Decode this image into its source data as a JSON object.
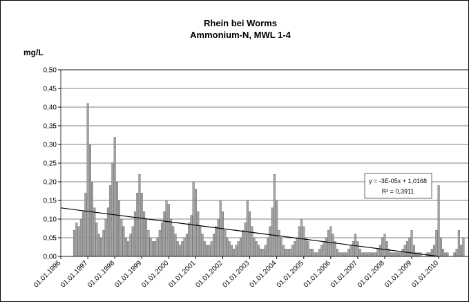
{
  "chart_data": {
    "type": "bar",
    "title": "Rhein bei Worms",
    "subtitle": "Ammonium-N, MWL 1-4",
    "y_label": "mg/L",
    "color": "#a6a6a6",
    "grid": true,
    "x": [
      "1996-07",
      "1996-08",
      "1996-09",
      "1996-10",
      "1996-11",
      "1996-12",
      "1997-01",
      "1997-02",
      "1997-03",
      "1997-04",
      "1997-05",
      "1997-06",
      "1997-07",
      "1997-08",
      "1997-09",
      "1997-10",
      "1997-11",
      "1997-12",
      "1998-01",
      "1998-02",
      "1998-03",
      "1998-04",
      "1998-05",
      "1998-06",
      "1998-07",
      "1998-08",
      "1998-09",
      "1998-10",
      "1998-11",
      "1998-12",
      "1999-01",
      "1999-02",
      "1999-03",
      "1999-04",
      "1999-05",
      "1999-06",
      "1999-07",
      "1999-08",
      "1999-09",
      "1999-10",
      "1999-11",
      "1999-12",
      "2000-01",
      "2000-02",
      "2000-03",
      "2000-04",
      "2000-05",
      "2000-06",
      "2000-07",
      "2000-08",
      "2000-09",
      "2000-10",
      "2000-11",
      "2000-12",
      "2001-01",
      "2001-02",
      "2001-03",
      "2001-04",
      "2001-05",
      "2001-06",
      "2001-07",
      "2001-08",
      "2001-09",
      "2001-10",
      "2001-11",
      "2001-12",
      "2002-01",
      "2002-02",
      "2002-03",
      "2002-04",
      "2002-05",
      "2002-06",
      "2002-07",
      "2002-08",
      "2002-09",
      "2002-10",
      "2002-11",
      "2002-12",
      "2003-01",
      "2003-02",
      "2003-03",
      "2003-04",
      "2003-05",
      "2003-06",
      "2003-07",
      "2003-08",
      "2003-09",
      "2003-10",
      "2003-11",
      "2003-12",
      "2004-01",
      "2004-02",
      "2004-03",
      "2004-04",
      "2004-05",
      "2004-06",
      "2004-07",
      "2004-08",
      "2004-09",
      "2004-10",
      "2004-11",
      "2004-12",
      "2005-01",
      "2005-02",
      "2005-03",
      "2005-04",
      "2005-05",
      "2005-06",
      "2005-07",
      "2005-08",
      "2005-09",
      "2005-10",
      "2005-11",
      "2005-12",
      "2006-01",
      "2006-02",
      "2006-03",
      "2006-04",
      "2006-05",
      "2006-06",
      "2006-07",
      "2006-08",
      "2006-09",
      "2006-10",
      "2006-11",
      "2006-12",
      "2007-01",
      "2007-02",
      "2007-03",
      "2007-04",
      "2007-05",
      "2007-06",
      "2007-07",
      "2007-08",
      "2007-09",
      "2007-10",
      "2007-11",
      "2007-12",
      "2008-01",
      "2008-02",
      "2008-03",
      "2008-04",
      "2008-05",
      "2008-06",
      "2008-07",
      "2008-08",
      "2008-09",
      "2008-10",
      "2008-11",
      "2008-12",
      "2009-01",
      "2009-02",
      "2009-03",
      "2009-04",
      "2009-05",
      "2009-06",
      "2009-07",
      "2009-08",
      "2009-09",
      "2009-10",
      "2009-11",
      "2009-12",
      "2010-01",
      "2010-02",
      "2010-03",
      "2010-04",
      "2010-05",
      "2010-06",
      "2010-07",
      "2010-08",
      "2010-09",
      "2010-10",
      "2010-11",
      "2010-12"
    ],
    "values": [
      0.07,
      0.09,
      0.08,
      0.1,
      0.12,
      0.17,
      0.41,
      0.3,
      0.2,
      0.13,
      0.09,
      0.06,
      0.05,
      0.07,
      0.1,
      0.13,
      0.19,
      0.25,
      0.32,
      0.2,
      0.15,
      0.1,
      0.08,
      0.05,
      0.04,
      0.06,
      0.08,
      0.12,
      0.17,
      0.22,
      0.17,
      0.12,
      0.1,
      0.07,
      0.05,
      0.04,
      0.04,
      0.05,
      0.07,
      0.09,
      0.12,
      0.15,
      0.14,
      0.1,
      0.08,
      0.06,
      0.04,
      0.03,
      0.04,
      0.05,
      0.06,
      0.09,
      0.11,
      0.2,
      0.18,
      0.12,
      0.08,
      0.06,
      0.04,
      0.03,
      0.03,
      0.04,
      0.06,
      0.08,
      0.1,
      0.15,
      0.12,
      0.07,
      0.05,
      0.04,
      0.03,
      0.02,
      0.03,
      0.04,
      0.05,
      0.07,
      0.09,
      0.15,
      0.12,
      0.08,
      0.05,
      0.04,
      0.03,
      0.02,
      0.02,
      0.03,
      0.05,
      0.08,
      0.13,
      0.22,
      0.15,
      0.07,
      0.05,
      0.03,
      0.02,
      0.02,
      0.02,
      0.03,
      0.04,
      0.05,
      0.08,
      0.1,
      0.08,
      0.05,
      0.04,
      0.02,
      0.02,
      0.01,
      0.01,
      0.02,
      0.03,
      0.04,
      0.05,
      0.07,
      0.08,
      0.06,
      0.04,
      0.02,
      0.01,
      0.01,
      0.01,
      0.01,
      0.02,
      0.03,
      0.04,
      0.06,
      0.04,
      0.02,
      0.01,
      0.01,
      0.01,
      0.01,
      0.01,
      0.01,
      0.01,
      0.02,
      0.03,
      0.05,
      0.06,
      0.04,
      0.02,
      0.01,
      0.01,
      0.01,
      0.01,
      0.01,
      0.02,
      0.03,
      0.04,
      0.05,
      0.07,
      0.03,
      0.01,
      0.01,
      0.01,
      0.0,
      0.0,
      0.01,
      0.01,
      0.02,
      0.03,
      0.07,
      0.19,
      0.05,
      0.02,
      0.01,
      0.01,
      0.0,
      0.0,
      0.01,
      0.02,
      0.07,
      0.03,
      0.05
    ],
    "xlim": [
      "1996-01-01",
      "2011-02-15"
    ],
    "xticks": [
      {
        "value": "1996-01-01",
        "label": "01.01.1996"
      },
      {
        "value": "1997-01-01",
        "label": "01.01.1997"
      },
      {
        "value": "1998-01-01",
        "label": "01.01.1998"
      },
      {
        "value": "1999-01-01",
        "label": "01.01.1999"
      },
      {
        "value": "2000-01-01",
        "label": "01.01.2000"
      },
      {
        "value": "2001-01-01",
        "label": "01.01.2001"
      },
      {
        "value": "2002-01-01",
        "label": "01.01.2002"
      },
      {
        "value": "2003-01-01",
        "label": "01.01.2003"
      },
      {
        "value": "2004-01-01",
        "label": "01.01.2004"
      },
      {
        "value": "2005-01-01",
        "label": "01.01.2005"
      },
      {
        "value": "2006-01-01",
        "label": "01.01.2006"
      },
      {
        "value": "2007-01-01",
        "label": "01.01.2007"
      },
      {
        "value": "2008-01-01",
        "label": "01.01.2008"
      },
      {
        "value": "2009-01-01",
        "label": "01.01.2009"
      },
      {
        "value": "2010-01-01",
        "label": "01.01.2010"
      }
    ],
    "ylim": [
      0,
      0.5
    ],
    "yticks": [
      {
        "value": 0,
        "label": "0,00"
      },
      {
        "value": 0.05,
        "label": "0,05"
      },
      {
        "value": 0.1,
        "label": "0,10"
      },
      {
        "value": 0.15,
        "label": "0,15"
      },
      {
        "value": 0.2,
        "label": "0,20"
      },
      {
        "value": 0.25,
        "label": "0,25"
      },
      {
        "value": 0.3,
        "label": "0,30"
      },
      {
        "value": 0.35,
        "label": "0,35"
      },
      {
        "value": 0.4,
        "label": "0,40"
      },
      {
        "value": 0.45,
        "label": "0,45"
      },
      {
        "value": 0.5,
        "label": "0,50"
      }
    ],
    "trendline": {
      "x": [
        "1996-01-01",
        "2010-01-01"
      ],
      "values": [
        0.13,
        0
      ],
      "equation": "y = -3E-05x + 1,0168",
      "r2": "R² = 0,3911"
    }
  }
}
